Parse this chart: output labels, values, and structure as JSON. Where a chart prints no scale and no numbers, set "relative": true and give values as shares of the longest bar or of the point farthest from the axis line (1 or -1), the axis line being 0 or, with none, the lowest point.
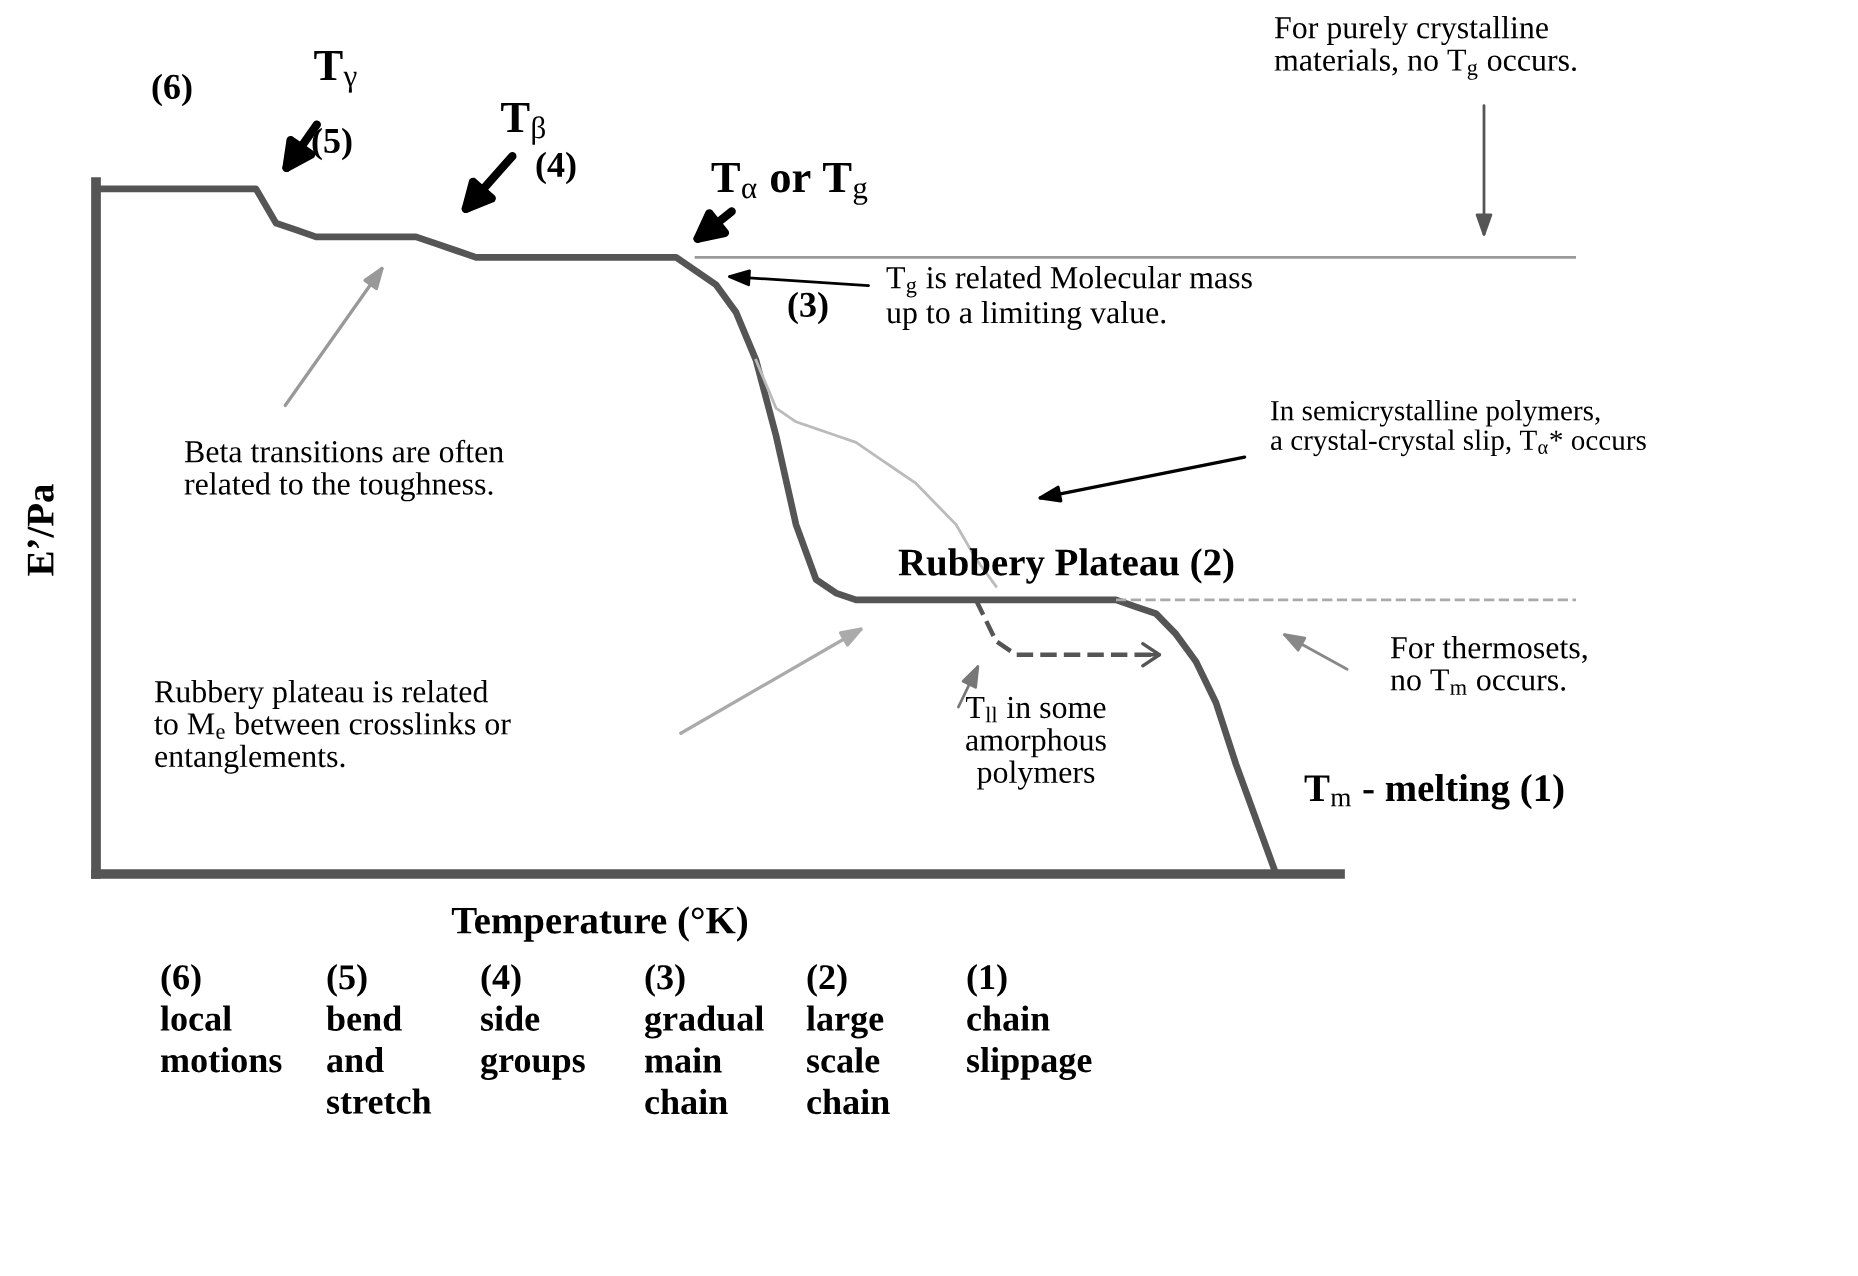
{
  "chart_data": {
    "type": "line",
    "relative": true,
    "xlabel": "Temperature (°K)",
    "ylabel": "E’/Pa",
    "categories": [
      null,
      null,
      null,
      null,
      null,
      null,
      null,
      null,
      null,
      null,
      null,
      null,
      null,
      null,
      null,
      null,
      null,
      null,
      null,
      null,
      null,
      null,
      null,
      null,
      null,
      null,
      null,
      null,
      null,
      null,
      null,
      null,
      null,
      null,
      null,
      null,
      null,
      null,
      null,
      null,
      null,
      null,
      null,
      null,
      null,
      null,
      null,
      null,
      null,
      null,
      null,
      null,
      null,
      null,
      null,
      null,
      null,
      null,
      null,
      null,
      null,
      null,
      null,
      null,
      null,
      null,
      null,
      null,
      null,
      null,
      null,
      null,
      null,
      null,
      null
    ],
    "series": [
      {
        "color": "#555555",
        "line_style": "solid",
        "values": [
          1.0,
          1.0,
          1.0,
          1.0,
          1.0,
          1.0,
          1.0,
          1.0,
          1.0,
          0.95,
          0.94,
          0.93,
          0.93,
          0.93,
          0.93,
          0.93,
          0.93,
          0.92,
          0.91,
          0.9,
          0.9,
          0.9,
          0.9,
          0.9,
          0.9,
          0.9,
          0.9,
          0.9,
          0.9,
          0.9,
          0.88,
          0.86,
          0.82,
          0.75,
          0.64,
          0.51,
          0.43,
          0.41,
          0.4,
          0.4,
          0.4,
          0.4,
          0.4,
          0.4,
          0.4,
          0.4,
          0.4,
          0.4,
          0.4,
          0.4,
          0.4,
          0.4,
          0.39,
          0.38,
          0.35,
          0.31,
          0.25,
          0.16,
          0.08,
          0.0,
          null,
          null,
          null,
          null,
          null,
          null,
          null,
          null,
          null,
          null,
          null,
          null,
          null,
          null,
          null
        ]
      },
      {
        "color": "#9a9a9a",
        "line_style": "solid",
        "values": [
          null,
          null,
          null,
          null,
          null,
          null,
          null,
          null,
          null,
          null,
          null,
          null,
          null,
          null,
          null,
          null,
          null,
          null,
          null,
          null,
          null,
          null,
          null,
          null,
          null,
          null,
          null,
          null,
          null,
          null,
          0.9,
          0.9,
          0.9,
          0.9,
          0.9,
          0.9,
          0.9,
          0.9,
          0.9,
          0.9,
          0.9,
          0.9,
          0.9,
          0.9,
          0.9,
          0.9,
          0.9,
          0.9,
          0.9,
          0.9,
          0.9,
          0.9,
          0.9,
          0.9,
          0.9,
          0.9,
          0.9,
          0.9,
          0.9,
          0.9,
          0.9,
          0.9,
          0.9,
          0.9,
          0.9,
          0.9,
          0.9,
          0.9,
          0.9,
          0.9,
          0.9,
          0.9,
          0.9,
          0.9,
          0.9
        ]
      },
      {
        "color": "#bbbbbb",
        "line_style": "solid",
        "values": [
          null,
          null,
          null,
          null,
          null,
          null,
          null,
          null,
          null,
          null,
          null,
          null,
          null,
          null,
          null,
          null,
          null,
          null,
          null,
          null,
          null,
          null,
          null,
          null,
          null,
          null,
          null,
          null,
          null,
          null,
          null,
          null,
          null,
          0.75,
          0.68,
          0.66,
          0.65,
          0.64,
          0.63,
          0.61,
          0.59,
          0.57,
          0.54,
          0.51,
          0.46,
          0.42,
          null,
          null,
          null,
          null,
          null,
          null,
          null,
          null,
          null,
          null,
          null,
          null,
          null,
          null,
          null,
          null,
          null,
          null,
          null,
          null,
          null,
          null,
          null,
          null,
          null,
          null,
          null,
          null,
          null
        ]
      },
      {
        "color": "#aaaaaa",
        "line_style": "dashed",
        "values": [
          null,
          null,
          null,
          null,
          null,
          null,
          null,
          null,
          null,
          null,
          null,
          null,
          null,
          null,
          null,
          null,
          null,
          null,
          null,
          null,
          null,
          null,
          null,
          null,
          null,
          null,
          null,
          null,
          null,
          null,
          null,
          null,
          null,
          null,
          null,
          null,
          null,
          null,
          null,
          null,
          null,
          null,
          null,
          null,
          null,
          null,
          null,
          null,
          null,
          null,
          null,
          0.4,
          0.4,
          0.4,
          0.4,
          0.4,
          0.4,
          0.4,
          0.4,
          0.4,
          0.4,
          0.4,
          0.4,
          0.4,
          0.4,
          0.4,
          0.4,
          0.4,
          0.4,
          0.4,
          0.4,
          0.4,
          0.4,
          0.4,
          0.4
        ]
      },
      {
        "color": "#555555",
        "line_style": "dashed",
        "values": [
          null,
          null,
          null,
          null,
          null,
          null,
          null,
          null,
          null,
          null,
          null,
          null,
          null,
          null,
          null,
          null,
          null,
          null,
          null,
          null,
          null,
          null,
          null,
          null,
          null,
          null,
          null,
          null,
          null,
          null,
          null,
          null,
          null,
          null,
          null,
          null,
          null,
          null,
          null,
          null,
          null,
          null,
          null,
          null,
          0.4,
          0.34,
          0.32,
          0.32,
          0.32,
          0.32,
          0.32,
          0.32,
          0.32,
          0.32,
          null,
          null,
          null,
          null,
          null,
          null,
          null,
          null,
          null,
          null,
          null,
          null,
          null,
          null,
          null,
          null,
          null,
          null,
          null,
          null,
          null
        ]
      }
    ],
    "annotations": [
      "(6)",
      "T$_{γ}$",
      "(5)",
      "T$_{β}$",
      "(4)",
      "T$_{α}$ or T$_{g}$",
      "(3)",
      "For purely crystalline\nmaterials, no T$_{g}$ occurs.",
      "T$_{g}$ is related Molecular mass\nup to a limiting value.",
      "Beta transitions are often\nrelated to the toughness.",
      "In semicrystalline polymers,\na crystal-crystal slip, T$_{α}$* occurs",
      "Rubbery Plateau (2)",
      "Rubbery plateau is related\nto M$_{e}$ between crosslinks or\nentanglements.",
      "T$_{ll}$ in some\namorphous\npolymers",
      "For thermosets,\nno T$_{m}$ occurs.",
      "T$_{m}$ - melting (1)",
      "(6)\nlocal\nmotions",
      "(5)\nbend\nand\nstretch",
      "(4)\nside\ngroups",
      "(3)\ngradual\nmain\nchain",
      "(2)\nlarge\nscale\nchain",
      "(1)\nchain\nslippage"
    ]
  }
}
